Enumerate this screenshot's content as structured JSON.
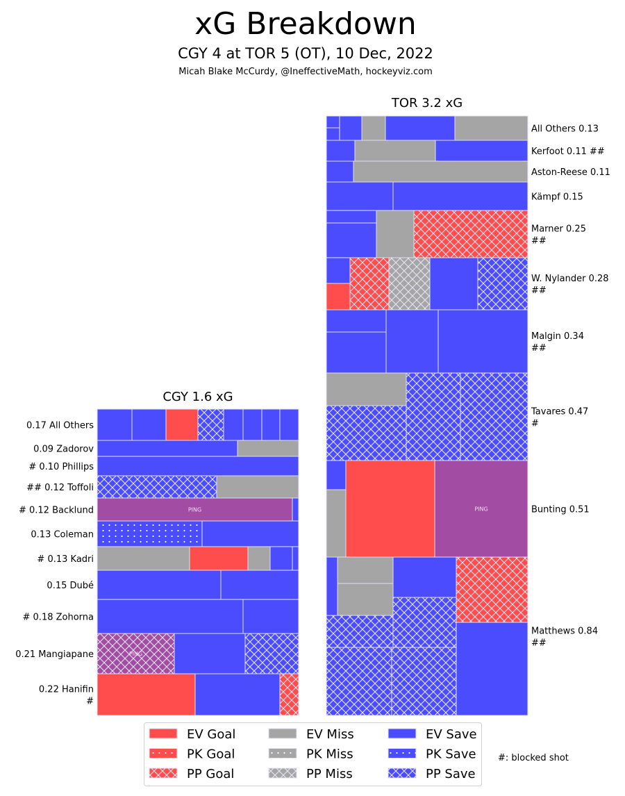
{
  "header": {
    "title": "xG Breakdown",
    "subtitle": "CGY 4 at TOR 5 (OT), 10 Dec, 2022",
    "credit": "Micah Blake McCurdy, @IneffectiveMath, hockeyviz.com"
  },
  "colors": {
    "goal": "#ff4c4c",
    "miss": "#a5a5a5",
    "save": "#4c4cff",
    "penalty": "#a34ca3",
    "edge": "#e0e0f0"
  },
  "chart_data": {
    "type": "treemap",
    "title": "xG Breakdown",
    "penalty_label": "PING",
    "teams": [
      {
        "id": "CGY",
        "label": "CGY 1.6 xG",
        "xg": 1.6,
        "players": [
          {
            "lines": [
              "0.17 All Others"
            ],
            "xg": 0.17,
            "cells": [
              "EV Save",
              "EV Save",
              "EV Goal",
              "PP Save",
              "EV Save",
              "EV Save",
              "EV Save",
              "EV Save"
            ]
          },
          {
            "lines": [
              "0.09 Zadorov"
            ],
            "xg": 0.09,
            "cells": [
              "EV Save",
              "EV Miss"
            ]
          },
          {
            "lines": [
              "# 0.10 Phillips"
            ],
            "xg": 0.1,
            "blocked": 1,
            "cells": [
              "EV Save"
            ]
          },
          {
            "lines": [
              "## 0.12 Toffoli"
            ],
            "xg": 0.12,
            "blocked": 2,
            "cells": [
              "PP Save",
              "EV Miss"
            ]
          },
          {
            "lines": [
              "# 0.12 Backlund"
            ],
            "xg": 0.12,
            "blocked": 1,
            "cells": [
              "Penalty",
              "EV Save"
            ]
          },
          {
            "lines": [
              "0.13 Coleman"
            ],
            "xg": 0.13,
            "cells": [
              "PK Save",
              "EV Save"
            ]
          },
          {
            "lines": [
              "# 0.13 Kadri"
            ],
            "xg": 0.13,
            "blocked": 1,
            "cells": [
              "EV Miss",
              "EV Goal",
              "EV Miss",
              "EV Save",
              "EV Save"
            ]
          },
          {
            "lines": [
              "0.15 Dubé"
            ],
            "xg": 0.15,
            "cells": [
              "EV Save",
              "EV Save"
            ]
          },
          {
            "lines": [
              "# 0.18 Zohorna"
            ],
            "xg": 0.18,
            "blocked": 1,
            "cells": [
              "EV Save",
              "EV Save"
            ]
          },
          {
            "lines": [
              "0.21 Mangiapane"
            ],
            "xg": 0.21,
            "cells": [
              "PP Penalty",
              "EV Save",
              "PP Save"
            ]
          },
          {
            "lines": [
              "0.22 Hanifin",
              "#"
            ],
            "xg": 0.22,
            "blocked": 1,
            "cells": [
              "EV Goal",
              "EV Save",
              "PP Goal"
            ]
          }
        ]
      },
      {
        "id": "TOR",
        "label": "TOR 3.2 xG",
        "xg": 3.2,
        "players": [
          {
            "lines": [
              "All Others 0.13"
            ],
            "xg": 0.13,
            "cells": [
              "EV Save",
              "EV Save",
              "EV Save",
              "EV Miss",
              "EV Save",
              "EV Miss"
            ]
          },
          {
            "lines": [
              "Kerfoot 0.11 ##"
            ],
            "xg": 0.11,
            "blocked": 2,
            "cells": [
              "EV Save",
              "EV Miss",
              "EV Save"
            ]
          },
          {
            "lines": [
              "Aston-Reese 0.11"
            ],
            "xg": 0.11,
            "cells": [
              "EV Save",
              "EV Miss"
            ]
          },
          {
            "lines": [
              "Kämpf 0.15"
            ],
            "xg": 0.15,
            "cells": [
              "EV Save",
              "EV Save"
            ]
          },
          {
            "lines": [
              "Marner 0.25",
              "##"
            ],
            "xg": 0.25,
            "blocked": 2,
            "cells": [
              "EV Save",
              "EV Save",
              "EV Miss",
              "PP Goal"
            ]
          },
          {
            "lines": [
              "W. Nylander 0.28",
              "##"
            ],
            "xg": 0.28,
            "blocked": 2,
            "cells": [
              "EV Save",
              "EV Goal",
              "PP Goal",
              "PP Miss",
              "EV Save",
              "PP Save"
            ]
          },
          {
            "lines": [
              "Malgin 0.34",
              "##"
            ],
            "xg": 0.34,
            "blocked": 2,
            "cells": [
              "EV Save",
              "EV Save",
              "EV Save",
              "EV Save"
            ]
          },
          {
            "lines": [
              "Tavares 0.47",
              "#"
            ],
            "xg": 0.47,
            "blocked": 1,
            "cells": [
              "EV Miss",
              "PP Save",
              "PP Save",
              "PP Save"
            ]
          },
          {
            "lines": [
              "Bunting 0.51"
            ],
            "xg": 0.51,
            "cells": [
              "EV Save",
              "EV Miss",
              "EV Goal",
              "Penalty"
            ]
          },
          {
            "lines": [
              "Matthews 0.84",
              "##"
            ],
            "xg": 0.84,
            "blocked": 2,
            "cells": [
              "EV Save",
              "EV Miss",
              "EV Miss",
              "PP Save",
              "EV Save",
              "PP Save",
              "PP Save",
              "PP Save",
              "PP Goal",
              "EV Save"
            ]
          }
        ]
      }
    ],
    "legend": {
      "placement": "bottom-center",
      "items": [
        "EV Goal",
        "PK Goal",
        "PP Goal",
        "EV Miss",
        "PK Miss",
        "PP Miss",
        "EV Save",
        "PK Save",
        "PP Save"
      ]
    },
    "note": "#: blocked shot"
  }
}
